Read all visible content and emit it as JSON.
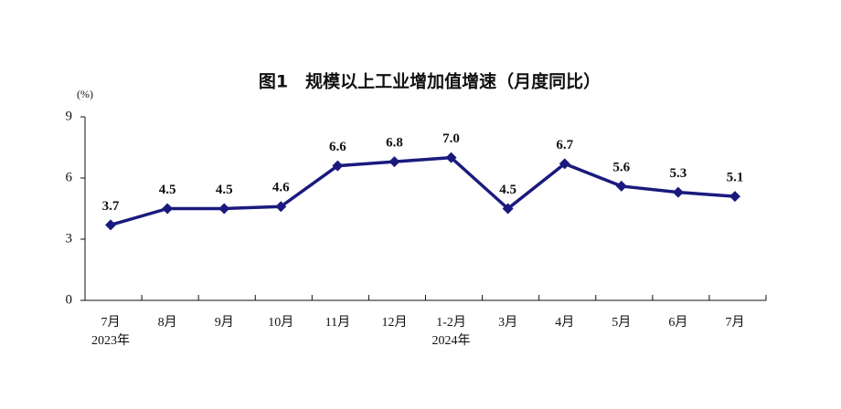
{
  "chart_data": {
    "type": "line",
    "title": "图1　规模以上工业增加值增速（月度同比）",
    "y_unit": "(%)",
    "categories": [
      "7月",
      "8月",
      "9月",
      "10月",
      "11月",
      "12月",
      "1-2月",
      "3月",
      "4月",
      "5月",
      "6月",
      "7月"
    ],
    "category_years": [
      "2023年",
      null,
      null,
      null,
      null,
      null,
      "2024年",
      null,
      null,
      null,
      null,
      null
    ],
    "series": [
      {
        "name": "规模以上工业增加值增速",
        "color": "#1a1a7e",
        "values": [
          3.7,
          4.5,
          4.5,
          4.6,
          6.6,
          6.8,
          7.0,
          4.5,
          6.7,
          5.6,
          5.3,
          5.1
        ],
        "value_labels": [
          "3.7",
          "4.5",
          "4.5",
          "4.6",
          "6.6",
          "6.8",
          "7.0",
          "4.5",
          "6.7",
          "5.6",
          "5.3",
          "5.1"
        ]
      }
    ],
    "ylim": [
      0,
      9
    ],
    "yticks": [
      0,
      3,
      6,
      9
    ],
    "grid": false
  }
}
